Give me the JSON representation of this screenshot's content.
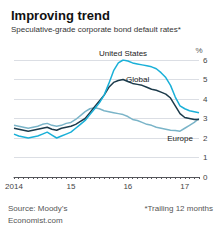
{
  "chart_data": {
    "type": "line",
    "title": "Improving trend",
    "subtitle": "Speculative-grade corporate bond default rates*",
    "ylabel": "%",
    "annotations": [
      "Source: Moody’s",
      "*Trailing 12 months",
      "Economist.com"
    ],
    "categories": [
      "2014",
      null,
      null,
      null,
      null,
      null,
      null,
      null,
      null,
      null,
      null,
      null,
      "15",
      null,
      null,
      null,
      null,
      null,
      null,
      null,
      null,
      null,
      null,
      null,
      "16",
      null,
      null,
      null,
      null,
      null,
      null,
      null,
      null,
      null,
      null,
      null,
      "17",
      null,
      null,
      null
    ],
    "series": [
      {
        "name": "United States",
        "color": "#1ab0d8",
        "values": [
          2.2,
          2.1,
          2.05,
          2.0,
          2.05,
          2.1,
          2.2,
          2.3,
          2.15,
          2.0,
          2.1,
          2.2,
          2.3,
          2.5,
          2.7,
          2.9,
          3.2,
          3.5,
          3.8,
          4.2,
          4.8,
          5.45,
          5.85,
          6.0,
          5.95,
          5.85,
          5.8,
          5.75,
          5.7,
          5.65,
          5.55,
          5.35,
          5.1,
          4.7,
          4.1,
          3.65,
          3.5,
          3.4,
          3.35,
          3.3
        ]
      },
      {
        "name": "Global",
        "color": "#1c3a4a",
        "values": [
          2.5,
          2.45,
          2.4,
          2.35,
          2.4,
          2.45,
          2.5,
          2.55,
          2.45,
          2.4,
          2.5,
          2.55,
          2.6,
          2.7,
          2.85,
          3.0,
          3.3,
          3.6,
          3.9,
          4.2,
          4.6,
          4.85,
          4.95,
          5.0,
          4.9,
          4.8,
          4.75,
          4.7,
          4.6,
          4.5,
          4.45,
          4.35,
          4.25,
          4.05,
          3.65,
          3.25,
          3.05,
          3.0,
          2.95,
          2.95
        ]
      },
      {
        "name": "Europe",
        "color": "#7ab4c8",
        "values": [
          2.65,
          2.6,
          2.55,
          2.5,
          2.55,
          2.6,
          2.7,
          2.75,
          2.65,
          2.6,
          2.65,
          2.75,
          2.8,
          2.95,
          3.15,
          3.35,
          3.5,
          3.55,
          3.5,
          3.4,
          3.35,
          3.3,
          3.25,
          3.2,
          3.1,
          2.95,
          2.9,
          2.8,
          2.7,
          2.65,
          2.55,
          2.5,
          2.45,
          2.4,
          2.38,
          2.35,
          2.5,
          2.65,
          2.8,
          3.0
        ]
      }
    ],
    "ylim": [
      0,
      6
    ],
    "yticks": [
      0,
      1,
      2,
      3,
      4,
      5,
      6
    ],
    "grid": true
  }
}
